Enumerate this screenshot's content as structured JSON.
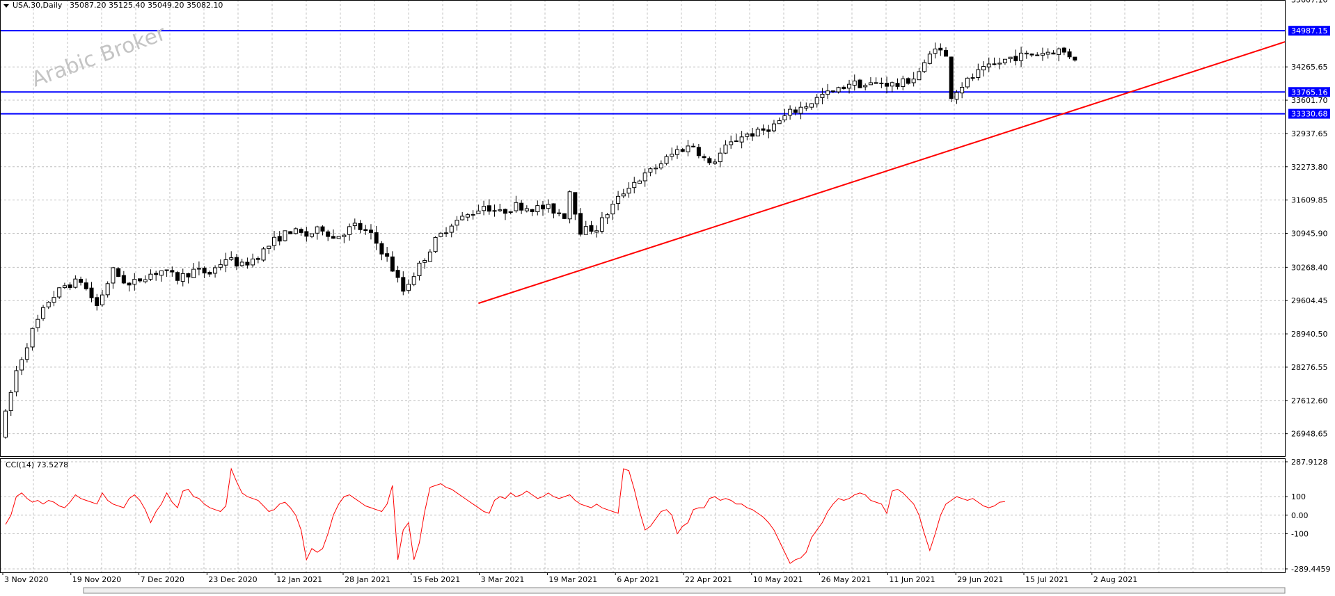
{
  "header": {
    "symbol_label": "USA.30,Daily",
    "ohlc_label": "35087.20 35125.40 35049.20 35082.10"
  },
  "watermark": "Arabic Broker",
  "colors": {
    "background": "#ffffff",
    "grid": "#c0c0c0",
    "candle": "#000000",
    "horizontal_line": "#0000ff",
    "trendline": "#ff0000",
    "cci_line": "#ff0000",
    "price_tag_bg": "#0000ff",
    "price_tag_text": "#ffffff"
  },
  "chart_data": [
    {
      "type": "candlestick",
      "title": "USA.30,Daily",
      "ylim": [
        26500,
        35600
      ],
      "y_ticks": [
        "35607.10",
        "34265.65",
        "33601.70",
        "32937.65",
        "32273.80",
        "31609.85",
        "30945.90",
        "30268.40",
        "29604.45",
        "28940.50",
        "28276.55",
        "27612.60",
        "26948.65"
      ],
      "x_labels": [
        "3 Nov 2020",
        "19 Nov 2020",
        "7 Dec 2020",
        "23 Dec 2020",
        "12 Jan 2021",
        "28 Jan 2021",
        "15 Feb 2021",
        "3 Mar 2021",
        "19 Mar 2021",
        "6 Apr 2021",
        "22 Apr 2021",
        "10 May 2021",
        "26 May 2021",
        "11 Jun 2021",
        "29 Jun 2021",
        "15 Jul 2021",
        "2 Aug 2021"
      ],
      "candle_count": 200,
      "anchors": [
        [
          0,
          26900
        ],
        [
          3,
          28200
        ],
        [
          6,
          29000
        ],
        [
          9,
          29600
        ],
        [
          12,
          29900
        ],
        [
          15,
          30000
        ],
        [
          18,
          29500
        ],
        [
          21,
          30200
        ],
        [
          24,
          29900
        ],
        [
          27,
          30100
        ],
        [
          30,
          30200
        ],
        [
          33,
          30050
        ],
        [
          36,
          30200
        ],
        [
          39,
          30150
        ],
        [
          42,
          30450
        ],
        [
          45,
          30300
        ],
        [
          48,
          30500
        ],
        [
          51,
          30800
        ],
        [
          54,
          31000
        ],
        [
          57,
          30900
        ],
        [
          60,
          31050
        ],
        [
          62,
          30850
        ],
        [
          66,
          31100
        ],
        [
          69,
          30900
        ],
        [
          72,
          30450
        ],
        [
          75,
          29800
        ],
        [
          78,
          30300
        ],
        [
          81,
          30800
        ],
        [
          84,
          31150
        ],
        [
          87,
          31300
        ],
        [
          90,
          31500
        ],
        [
          93,
          31350
        ],
        [
          96,
          31500
        ],
        [
          99,
          31450
        ],
        [
          102,
          31450
        ],
        [
          105,
          31300
        ],
        [
          106,
          31800
        ],
        [
          108,
          31000
        ],
        [
          111,
          31050
        ],
        [
          114,
          31500
        ],
        [
          117,
          31900
        ],
        [
          120,
          32100
        ],
        [
          123,
          32350
        ],
        [
          126,
          32600
        ],
        [
          129,
          32700
        ],
        [
          132,
          32300
        ],
        [
          135,
          32650
        ],
        [
          138,
          32900
        ],
        [
          141,
          32950
        ],
        [
          144,
          33100
        ],
        [
          147,
          33350
        ],
        [
          150,
          33500
        ],
        [
          153,
          33700
        ],
        [
          156,
          33800
        ],
        [
          158,
          33950
        ],
        [
          161,
          33900
        ],
        [
          164,
          33950
        ],
        [
          167,
          33900
        ],
        [
          170,
          34050
        ],
        [
          172,
          34300
        ],
        [
          174,
          34700
        ],
        [
          176,
          34450
        ],
        [
          177,
          33700
        ],
        [
          179,
          33900
        ],
        [
          182,
          34150
        ],
        [
          185,
          34300
        ],
        [
          188,
          34450
        ],
        [
          191,
          34500
        ],
        [
          194,
          34550
        ],
        [
          197,
          34600
        ],
        [
          200,
          34450
        ]
      ],
      "last_price": "35082.10"
    },
    {
      "type": "line",
      "title": "CCI(14) 73.5278",
      "ylim": [
        -289.4459,
        287.9128
      ],
      "y_ticks": [
        "287.9128",
        "100",
        "0.00",
        "-100",
        "-289.4459"
      ],
      "series": [
        {
          "values": [
            -50,
            0,
            100,
            120,
            90,
            70,
            80,
            60,
            80,
            70,
            50,
            40,
            70,
            110,
            90,
            80,
            70,
            60,
            120,
            80,
            60,
            50,
            40,
            90,
            110,
            80,
            30,
            -40,
            20,
            60,
            120,
            70,
            40,
            130,
            140,
            100,
            90,
            60,
            40,
            30,
            20,
            50,
            250,
            180,
            120,
            100,
            90,
            80,
            50,
            20,
            30,
            60,
            70,
            40,
            0,
            -80,
            -240,
            -180,
            -200,
            -180,
            -100,
            0,
            60,
            100,
            110,
            90,
            70,
            50,
            40,
            30,
            20,
            60,
            160,
            -240,
            -80,
            -40,
            -240,
            -150,
            20,
            150,
            160,
            170,
            150,
            140,
            120,
            100,
            80,
            60,
            40,
            20,
            10,
            80,
            100,
            90,
            120,
            100,
            110,
            130,
            110,
            90,
            100,
            120,
            100,
            90,
            100,
            110,
            80,
            60,
            50,
            40,
            60,
            40,
            30,
            20,
            10,
            250,
            240,
            140,
            20,
            -80,
            -60,
            -20,
            20,
            30,
            0,
            -100,
            -60,
            -40,
            30,
            40,
            40,
            90,
            100,
            80,
            90,
            80,
            60,
            60,
            40,
            30,
            10,
            -10,
            -40,
            -80,
            -140,
            -200,
            -260,
            -240,
            -230,
            -200,
            -120,
            -80,
            -40,
            20,
            60,
            90,
            80,
            90,
            110,
            120,
            110,
            80,
            70,
            60,
            10,
            130,
            140,
            120,
            90,
            60,
            0,
            -100,
            -190,
            -100,
            0,
            60,
            80,
            100,
            90,
            80,
            90,
            70,
            50,
            40,
            50,
            70,
            73.5
          ]
        }
      ],
      "x_labels": [
        "3 Nov 2020",
        "19 Nov 2020",
        "7 Dec 2020",
        "23 Dec 2020",
        "12 Jan 2021",
        "28 Jan 2021",
        "15 Feb 2021",
        "3 Mar 2021",
        "19 Mar 2021",
        "6 Apr 2021",
        "22 Apr 2021",
        "10 May 2021",
        "26 May 2021",
        "11 Jun 2021",
        "29 Jun 2021",
        "15 Jul 2021",
        "2 Aug 2021"
      ]
    }
  ],
  "horizontal_levels": [
    {
      "label": "34987.15",
      "price": 34987.15
    },
    {
      "label": "33765.16",
      "price": 33765.16
    },
    {
      "label": "33330.68",
      "price": 33330.68
    }
  ],
  "trendline": {
    "start": {
      "index": 88,
      "price": 29550
    },
    "end": {
      "index": 265,
      "price": 35700
    }
  }
}
